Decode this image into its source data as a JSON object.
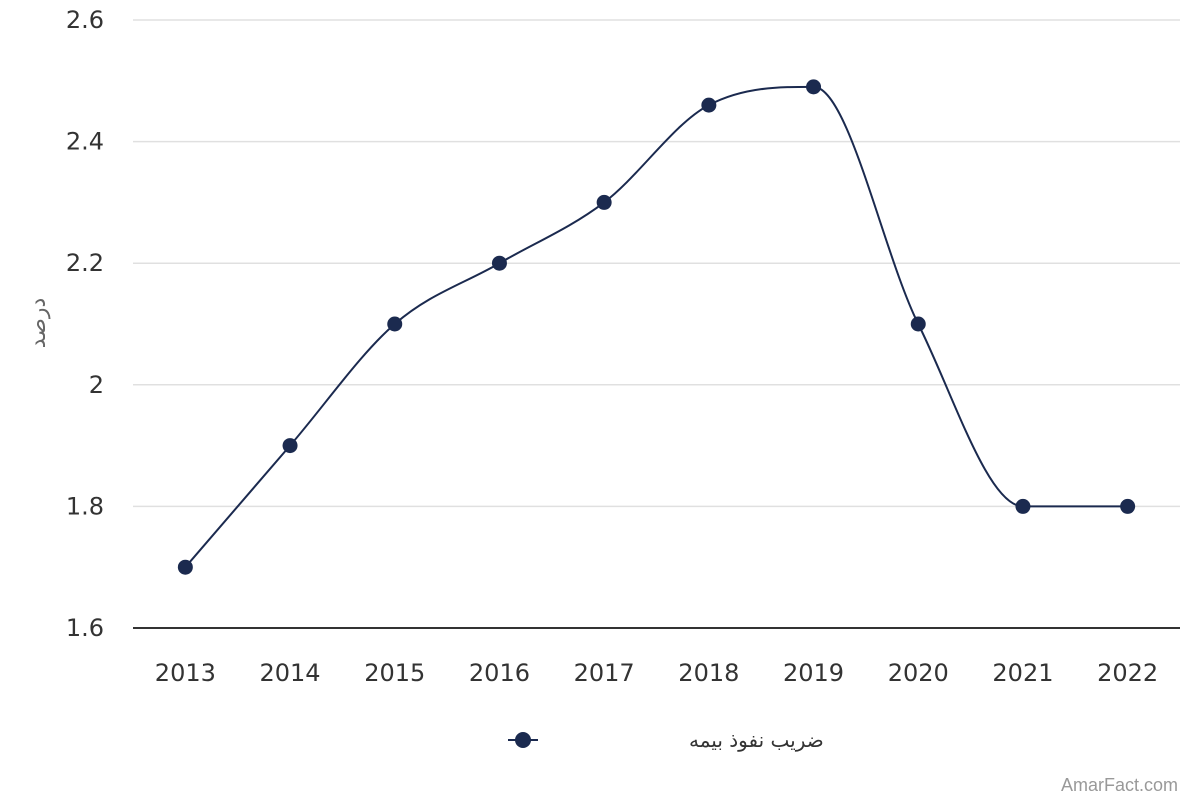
{
  "chart_data": {
    "type": "line",
    "x": [
      "2013",
      "2014",
      "2015",
      "2016",
      "2017",
      "2018",
      "2019",
      "2020",
      "2021",
      "2022"
    ],
    "series": [
      {
        "name": "ضریب نفوذ بیمه",
        "values": [
          1.7,
          1.9,
          2.1,
          2.2,
          2.3,
          2.46,
          2.49,
          2.1,
          1.8,
          1.8
        ],
        "color": "#1b2a4f"
      }
    ],
    "ylabel": "درصد",
    "xlabel": "",
    "ylim": [
      1.6,
      2.6
    ],
    "yticks": [
      1.6,
      1.8,
      2,
      2.2,
      2.4,
      2.6
    ],
    "ytick_labels": [
      "1.6",
      "1.8",
      "2",
      "2.2",
      "2.4",
      "2.6"
    ],
    "grid": true,
    "smooth": true,
    "legend_position": "bottom-center"
  },
  "watermark": "AmarFact.com",
  "colors": {
    "grid": "#e0e0e0",
    "axis": "#333333",
    "series": "#1b2a4f"
  }
}
